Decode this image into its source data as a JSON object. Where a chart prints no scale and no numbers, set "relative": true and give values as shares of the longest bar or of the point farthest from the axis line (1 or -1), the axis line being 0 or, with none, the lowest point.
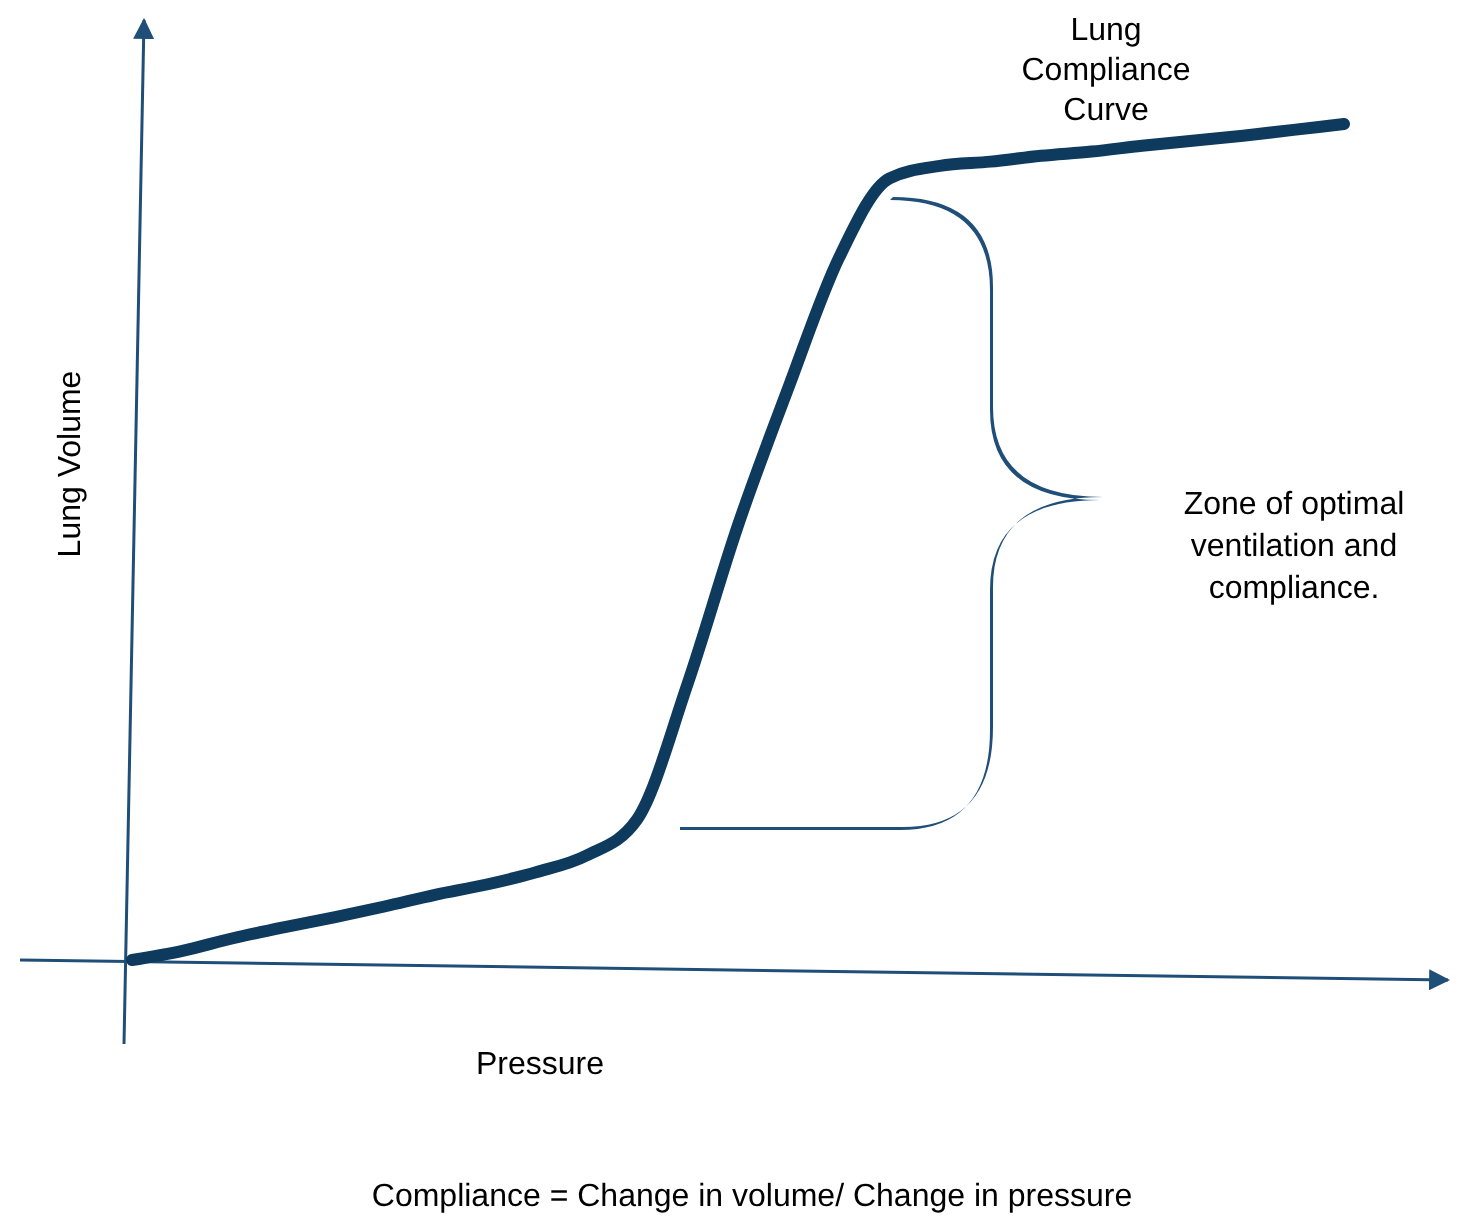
{
  "chart_data": {
    "type": "line",
    "relative": true,
    "xlabel": "Pressure",
    "ylabel": "Lung Volume",
    "line_style": "solid",
    "categories": [
      null,
      null,
      null,
      null,
      null,
      null,
      null,
      null,
      null,
      null,
      null,
      null,
      null,
      null,
      null,
      null,
      null,
      null,
      null,
      null,
      null,
      null,
      null,
      null,
      null
    ],
    "series": [
      {
        "color": "#0e3a5e",
        "values": [
          0,
          0.011,
          0.026,
          0.039,
          0.051,
          0.064,
          0.078,
          0.09,
          0.105,
          0.125,
          0.168,
          0.33,
          0.52,
          0.685,
          0.84,
          0.935,
          0.95,
          0.955,
          0.962,
          0.967,
          0.974,
          0.98,
          0.986,
          0.993,
          1
        ]
      }
    ],
    "annotations": [
      "Lung Compliance Curve",
      "Zone of optimal ventilation and compliance.",
      "Compliance = Change in volume/ Change in pressure"
    ]
  }
}
